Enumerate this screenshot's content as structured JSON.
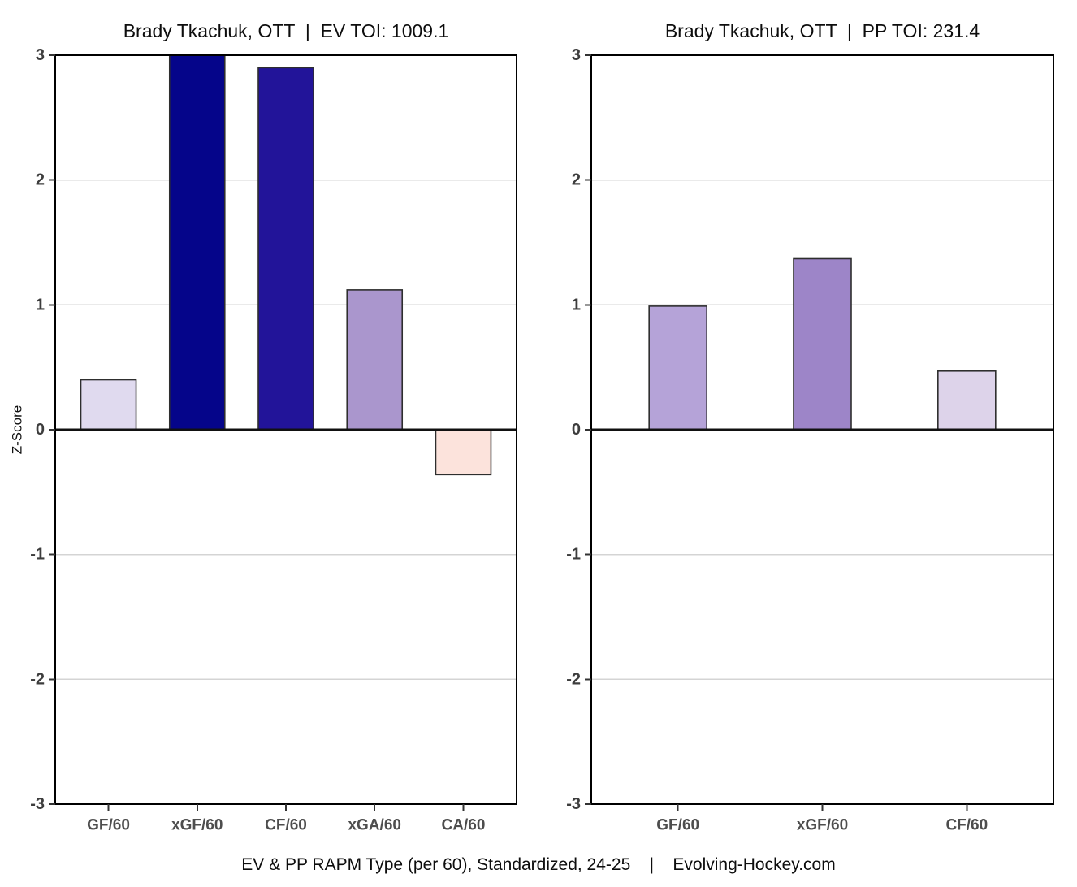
{
  "caption": "EV & PP RAPM Type (per 60), Standardized, 24-25    |    Evolving-Hockey.com",
  "style": {
    "background": "#ffffff",
    "grid_color": "#d4d4d4",
    "zero_line_color": "#111111",
    "frame_color": "#000000",
    "tick_color": "#333333",
    "y_tick_label_color": "#3d3d3d",
    "x_tick_label_color": "#4d4d4d",
    "bar_border_color": "#2e2e2e",
    "title_color": "#0d0d0d",
    "ylabel_color": "#111111"
  },
  "chart_data": [
    {
      "id": "ev",
      "type": "bar",
      "title": "Brady Tkachuk, OTT  |  EV TOI: 1009.1",
      "xlabel": "",
      "ylabel": "Z-Score",
      "ylim": [
        -3,
        3
      ],
      "yticks": [
        3,
        2,
        1,
        0,
        -1,
        -2,
        -3
      ],
      "grid": "horizontal-major",
      "legend": "none",
      "categories": [
        "GF/60",
        "xGF/60",
        "CF/60",
        "xGA/60",
        "CA/60"
      ],
      "values": [
        0.4,
        3.0,
        2.9,
        1.12,
        -0.36
      ],
      "bar_colors": [
        "#e0daef",
        "#05058a",
        "#221499",
        "#aa96cd",
        "#fce3dc"
      ]
    },
    {
      "id": "pp",
      "type": "bar",
      "title": "Brady Tkachuk, OTT  |  PP TOI: 231.4",
      "xlabel": "",
      "ylabel": "",
      "ylim": [
        -3,
        3
      ],
      "yticks": [
        3,
        2,
        1,
        0,
        -1,
        -2,
        -3
      ],
      "grid": "horizontal-major",
      "legend": "none",
      "categories": [
        "GF/60",
        "xGF/60",
        "CF/60"
      ],
      "values": [
        0.99,
        1.37,
        0.47
      ],
      "bar_colors": [
        "#b5a3d8",
        "#9d85c8",
        "#ddd3ea"
      ]
    }
  ]
}
